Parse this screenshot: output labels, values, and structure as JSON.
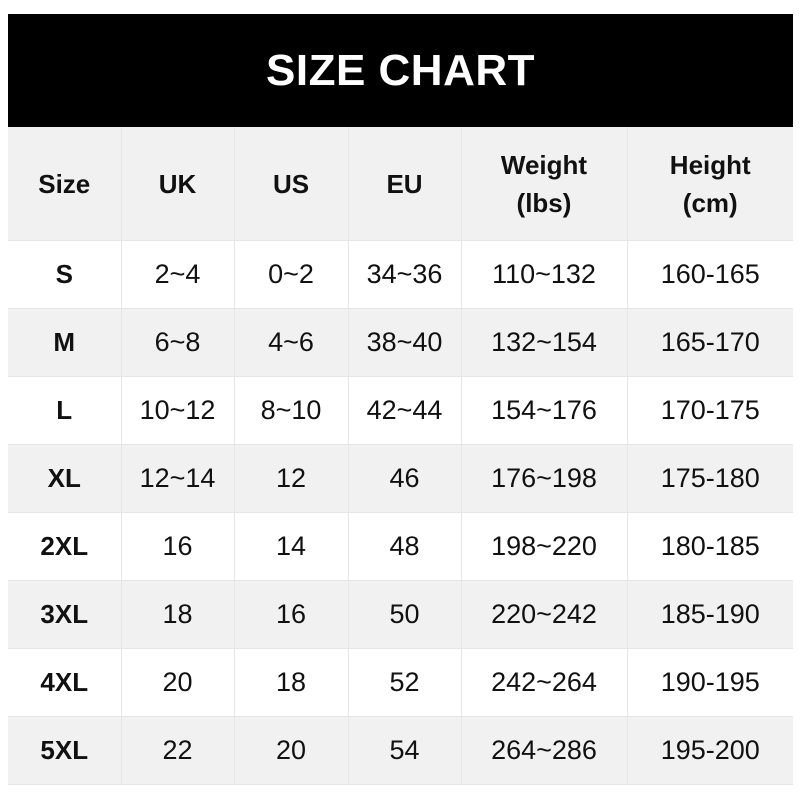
{
  "title": "SIZE CHART",
  "columns": [
    {
      "line1": "Size",
      "line2": ""
    },
    {
      "line1": "UK",
      "line2": ""
    },
    {
      "line1": "US",
      "line2": ""
    },
    {
      "line1": "EU",
      "line2": ""
    },
    {
      "line1": "Weight",
      "line2": "(lbs)"
    },
    {
      "line1": "Height",
      "line2": "(cm)"
    }
  ],
  "rows": [
    [
      "S",
      "2~4",
      "0~2",
      "34~36",
      "110~132",
      "160-165"
    ],
    [
      "M",
      "6~8",
      "4~6",
      "38~40",
      "132~154",
      "165-170"
    ],
    [
      "L",
      "10~12",
      "8~10",
      "42~44",
      "154~176",
      "170-175"
    ],
    [
      "XL",
      "12~14",
      "12",
      "46",
      "176~198",
      "175-180"
    ],
    [
      "2XL",
      "16",
      "14",
      "48",
      "198~220",
      "180-185"
    ],
    [
      "3XL",
      "18",
      "16",
      "50",
      "220~242",
      "185-190"
    ],
    [
      "4XL",
      "20",
      "18",
      "52",
      "242~264",
      "190-195"
    ],
    [
      "5XL",
      "22",
      "20",
      "54",
      "264~286",
      "195-200"
    ]
  ]
}
